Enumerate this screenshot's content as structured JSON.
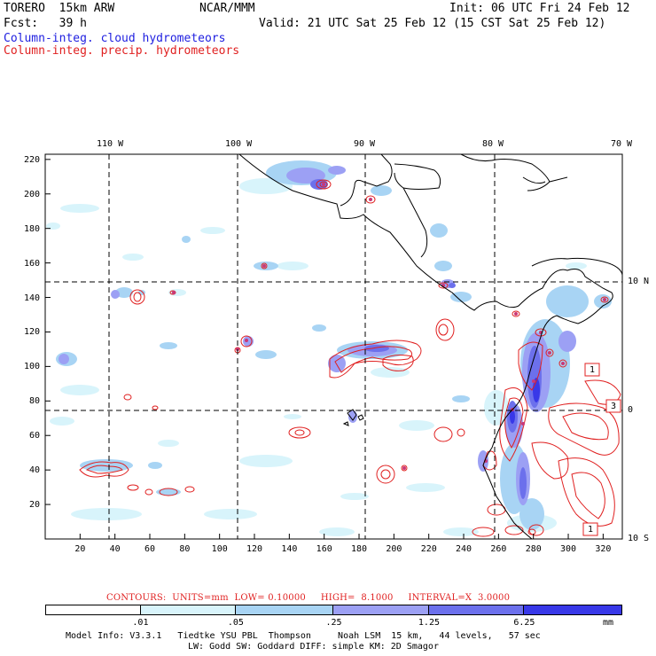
{
  "header": {
    "model": "TORERO  15km ARW",
    "org": "NCAR/MMM",
    "init": "Init: 06 UTC Fri 24 Feb 12",
    "fcst": "Fcst:   39 h",
    "valid": "Valid: 21 UTC Sat 25 Feb 12 (15 CST Sat 25 Feb 12)",
    "field1": "Column-integ. cloud hydrometeors",
    "field2": "Column-integ. precip. hydrometeors",
    "colors": {
      "cloud": "#2020e0",
      "precip": "#e02020"
    }
  },
  "map": {
    "x_ticks": [
      "20",
      "40",
      "60",
      "80",
      "100",
      "120",
      "140",
      "160",
      "180",
      "200",
      "220",
      "240",
      "260",
      "280",
      "300",
      "320"
    ],
    "y_ticks": [
      "20",
      "40",
      "60",
      "80",
      "100",
      "120",
      "140",
      "160",
      "180",
      "200",
      "220"
    ],
    "lon_labels": [
      "110 W",
      "100 W",
      "90 W",
      "80 W",
      "70 W"
    ],
    "lat_labels": [
      "10 N",
      "0",
      "10 S"
    ],
    "contour_labels": [
      "1",
      "3",
      "1"
    ]
  },
  "footer": {
    "contours": "CONTOURS:  UNITS=mm  LOW= 0.10000     HIGH=  8.1000     INTERVAL=X  3.0000",
    "colorbar_labels": [
      ".01",
      ".05",
      ".25",
      "1.25",
      "6.25"
    ],
    "colorbar_unit": "mm",
    "colorbar_colors": [
      "#ffffff",
      "#d8f4fb",
      "#a8d4f4",
      "#9ca0f4",
      "#6c70ec",
      "#3838e8"
    ],
    "info1": "Model Info: V3.3.1   Tiedtke YSU PBL  Thompson     Noah LSM  15 km,   44 levels,   57 sec",
    "info2": "LW: Godd SW: Goddard DIFF: simple KM: 2D Smagor"
  }
}
